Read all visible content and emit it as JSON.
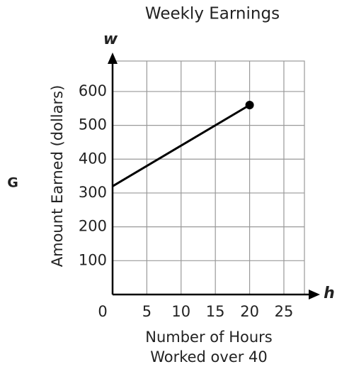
{
  "chart_data": {
    "type": "line",
    "title": "Weekly Earnings",
    "label": "G",
    "ylabel": "Amount Earned (dollars)",
    "xlabel": [
      "Number of Hours",
      "Worked over 40"
    ],
    "x_axis_var": "h",
    "y_axis_var": "w",
    "series": [
      {
        "x": [
          0,
          20
        ],
        "values": [
          320,
          560
        ],
        "color": "#000000"
      }
    ],
    "xlim": [
      0,
      28
    ],
    "ylim": [
      0,
      690
    ],
    "xticks": [
      0,
      5,
      10,
      15,
      20,
      25
    ],
    "yticks": [
      100,
      200,
      300,
      400,
      500,
      600
    ],
    "grid": true
  }
}
